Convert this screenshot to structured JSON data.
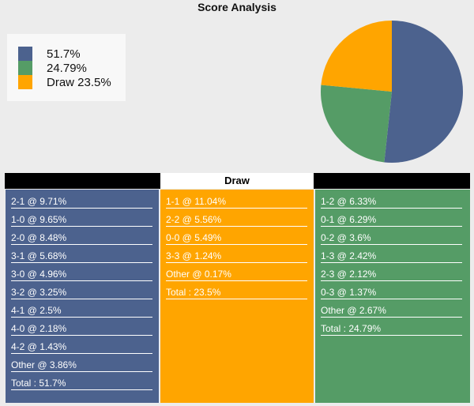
{
  "title": "Score Analysis",
  "colors": {
    "home": "#4c628e",
    "away": "#559c66",
    "draw": "#ffa500"
  },
  "legend": [
    {
      "label": "51.7%",
      "color": "#4c628e"
    },
    {
      "label": "24.79%",
      "color": "#559c66"
    },
    {
      "label": "Draw 23.5%",
      "color": "#ffa500"
    }
  ],
  "pie": [
    {
      "name": "home",
      "value": 51.7,
      "color": "#4c628e"
    },
    {
      "name": "away",
      "value": 24.79,
      "color": "#559c66"
    },
    {
      "name": "draw",
      "value": 23.5,
      "color": "#ffa500"
    }
  ],
  "table": {
    "draw_header": "Draw",
    "home": [
      "2-1 @ 9.71%",
      "1-0 @ 9.65%",
      "2-0 @ 8.48%",
      "3-1 @ 5.68%",
      "3-0 @ 4.96%",
      "3-2 @ 3.25%",
      "4-1 @ 2.5%",
      "4-0 @ 2.18%",
      "4-2 @ 1.43%",
      "Other @ 3.86%",
      "Total : 51.7%"
    ],
    "draw": [
      "1-1 @ 11.04%",
      "2-2 @ 5.56%",
      "0-0 @ 5.49%",
      "3-3 @ 1.24%",
      "Other @ 0.17%",
      "Total : 23.5%"
    ],
    "away": [
      "1-2 @ 6.33%",
      "0-1 @ 6.29%",
      "0-2 @ 3.6%",
      "1-3 @ 2.42%",
      "2-3 @ 2.12%",
      "0-3 @ 1.37%",
      "Other @ 2.67%",
      "Total : 24.79%"
    ]
  }
}
